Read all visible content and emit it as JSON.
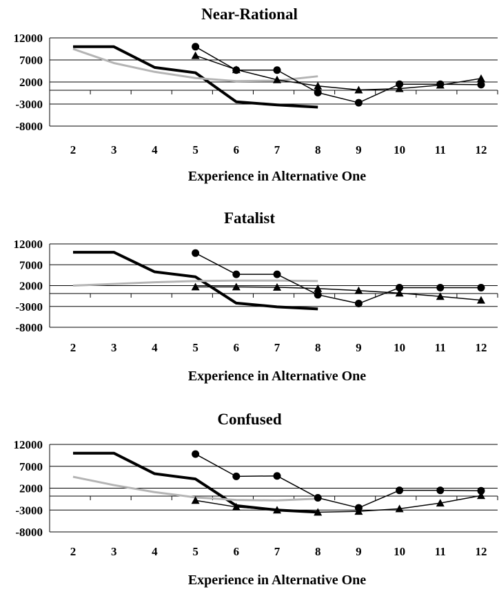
{
  "chart_data": [
    {
      "type": "line",
      "title": "Near-Rational",
      "xlabel": "Experience in Alternative One",
      "ylabel": "",
      "ylim": [
        -8000,
        12000
      ],
      "yticks": [
        "12000",
        "7000",
        "2000",
        "-3000",
        "-8000"
      ],
      "xticks": [
        "2",
        "3",
        "4",
        "5",
        "6",
        "7",
        "8",
        "9",
        "10",
        "11",
        "12"
      ],
      "grid": true,
      "series": [
        {
          "style": "thick-black",
          "x": [
            2,
            3,
            4,
            5,
            6,
            7,
            8
          ],
          "values": [
            10000,
            10000,
            5300,
            4100,
            -2500,
            -3200,
            -3700
          ]
        },
        {
          "style": "gray",
          "x": [
            2,
            3,
            4,
            5,
            6,
            7,
            8
          ],
          "values": [
            9500,
            6300,
            4300,
            2900,
            2200,
            2300,
            3300
          ]
        },
        {
          "style": "circle-markers",
          "x": [
            5,
            6,
            7,
            8,
            9,
            10,
            11,
            12
          ],
          "values": [
            10000,
            4700,
            4700,
            -400,
            -2700,
            1500,
            1500,
            1400
          ]
        },
        {
          "style": "triangle-markers",
          "x": [
            5,
            6,
            7,
            8,
            9,
            10,
            11,
            12
          ],
          "values": [
            8000,
            4800,
            2500,
            1100,
            200,
            500,
            1300,
            2800
          ]
        }
      ]
    },
    {
      "type": "line",
      "title": "Fatalist",
      "xlabel": "Experience in Alternative One",
      "ylabel": "",
      "ylim": [
        -8000,
        12000
      ],
      "yticks": [
        "12000",
        "7000",
        "2000",
        "-3000",
        "-8000"
      ],
      "xticks": [
        "2",
        "3",
        "4",
        "5",
        "6",
        "7",
        "8",
        "9",
        "10",
        "11",
        "12"
      ],
      "grid": true,
      "series": [
        {
          "style": "thick-black",
          "x": [
            2,
            3,
            4,
            5,
            6,
            7,
            8
          ],
          "values": [
            10000,
            10000,
            5300,
            4100,
            -2200,
            -3100,
            -3600
          ]
        },
        {
          "style": "gray",
          "x": [
            2,
            3,
            4,
            5,
            6,
            7,
            8
          ],
          "values": [
            2000,
            2400,
            2800,
            3100,
            3200,
            3200,
            3100
          ]
        },
        {
          "style": "circle-markers",
          "x": [
            5,
            6,
            7,
            8,
            9,
            10,
            11,
            12
          ],
          "values": [
            9800,
            4700,
            4700,
            -200,
            -2300,
            1500,
            1500,
            1500
          ]
        },
        {
          "style": "triangle-markers",
          "x": [
            5,
            6,
            7,
            8,
            9,
            10,
            11,
            12
          ],
          "values": [
            1700,
            1700,
            1600,
            1300,
            800,
            200,
            -600,
            -1500
          ]
        }
      ]
    },
    {
      "type": "line",
      "title": "Confused",
      "xlabel": "Experience in Alternative One",
      "ylabel": "",
      "ylim": [
        -8000,
        12000
      ],
      "yticks": [
        "12000",
        "7000",
        "2000",
        "-3000",
        "-8000"
      ],
      "xticks": [
        "2",
        "3",
        "4",
        "5",
        "6",
        "7",
        "8",
        "9",
        "10",
        "11",
        "12"
      ],
      "grid": true,
      "series": [
        {
          "style": "thick-black",
          "x": [
            2,
            3,
            4,
            5,
            6,
            7,
            8
          ],
          "values": [
            10000,
            10000,
            5300,
            4100,
            -2000,
            -3000,
            -3500
          ]
        },
        {
          "style": "gray",
          "x": [
            2,
            3,
            4,
            5,
            6,
            7,
            8
          ],
          "values": [
            4600,
            2700,
            1100,
            -100,
            -700,
            -800,
            -400
          ]
        },
        {
          "style": "circle-markers",
          "x": [
            5,
            6,
            7,
            8,
            9,
            10,
            11,
            12
          ],
          "values": [
            9800,
            4700,
            4800,
            -200,
            -2500,
            1500,
            1500,
            1400
          ]
        },
        {
          "style": "triangle-markers",
          "x": [
            5,
            6,
            7,
            8,
            9,
            10,
            11,
            12
          ],
          "values": [
            -800,
            -2300,
            -3000,
            -3500,
            -3300,
            -2700,
            -1400,
            300
          ]
        }
      ]
    }
  ]
}
